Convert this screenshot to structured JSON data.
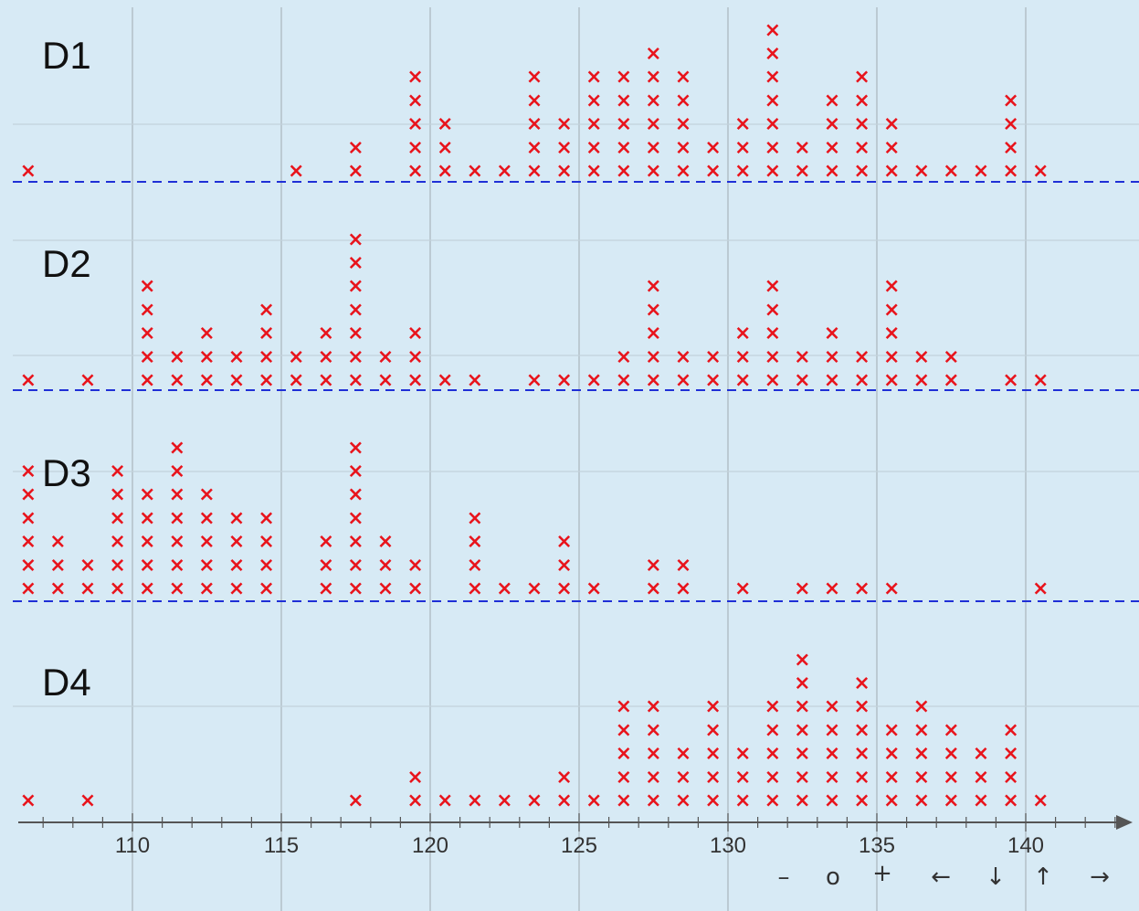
{
  "chart_data": {
    "type": "dot-plot",
    "x_axis": {
      "ticks": [
        110,
        115,
        120,
        125,
        130,
        135,
        140
      ],
      "range": [
        106.5,
        143.5
      ],
      "minor_step": 1,
      "arrow": true
    },
    "grid": true,
    "colors": {
      "background": "#d7eaf5",
      "marker": "#e8141c",
      "baseline": "#1f2fd6",
      "grid_major": "#a9b4bc",
      "grid_minor": "#c3d2dc",
      "axis": "#555555"
    },
    "marker": "×",
    "panels": [
      {
        "label": "D1",
        "dashed_baseline": true,
        "x": [
          108,
          117,
          119,
          121,
          122,
          123,
          124,
          125,
          126,
          127,
          128,
          129,
          130,
          131,
          132,
          133,
          134,
          135,
          136,
          137,
          138,
          139,
          140,
          141,
          142
        ],
        "counts": [
          1,
          1,
          2,
          5,
          3,
          1,
          1,
          5,
          3,
          5,
          5,
          6,
          5,
          2,
          3,
          7,
          2,
          4,
          5,
          3,
          1,
          1,
          1,
          4,
          1
        ]
      },
      {
        "label": "D2",
        "dashed_baseline": true,
        "x": [
          108,
          110,
          112,
          113,
          114,
          115,
          116,
          117,
          118,
          119,
          120,
          121,
          122,
          123,
          125,
          126,
          127,
          128,
          129,
          130,
          131,
          132,
          133,
          134,
          135,
          136,
          137,
          138,
          139,
          141,
          142
        ],
        "counts": [
          1,
          1,
          5,
          2,
          3,
          2,
          4,
          2,
          3,
          7,
          2,
          3,
          1,
          1,
          1,
          1,
          1,
          2,
          5,
          2,
          2,
          3,
          5,
          2,
          3,
          2,
          5,
          2,
          2,
          1,
          1
        ]
      },
      {
        "label": "D3",
        "dashed_baseline": true,
        "x": [
          108,
          109,
          110,
          111,
          112,
          113,
          114,
          115,
          116,
          118,
          119,
          120,
          121,
          123,
          124,
          125,
          126,
          127,
          129,
          130,
          132,
          134,
          135,
          136,
          137,
          142
        ],
        "counts": [
          6,
          3,
          2,
          6,
          5,
          7,
          5,
          4,
          4,
          3,
          7,
          3,
          2,
          4,
          1,
          1,
          3,
          1,
          2,
          2,
          1,
          1,
          1,
          1,
          1,
          1
        ]
      },
      {
        "label": "D4",
        "dashed_baseline": false,
        "x": [
          108,
          110,
          119,
          121,
          122,
          123,
          124,
          125,
          126,
          127,
          128,
          129,
          130,
          131,
          132,
          133,
          134,
          135,
          136,
          137,
          138,
          139,
          140,
          141,
          142
        ],
        "counts": [
          1,
          1,
          1,
          2,
          1,
          1,
          1,
          1,
          2,
          1,
          5,
          5,
          3,
          5,
          3,
          5,
          7,
          5,
          6,
          4,
          5,
          4,
          3,
          4,
          1
        ]
      }
    ]
  },
  "controls": {
    "zoom_out": "–",
    "reset": "o",
    "zoom_in": "+",
    "pan_left": "←",
    "pan_down": "↓",
    "pan_up": "↑",
    "pan_right": "→"
  }
}
